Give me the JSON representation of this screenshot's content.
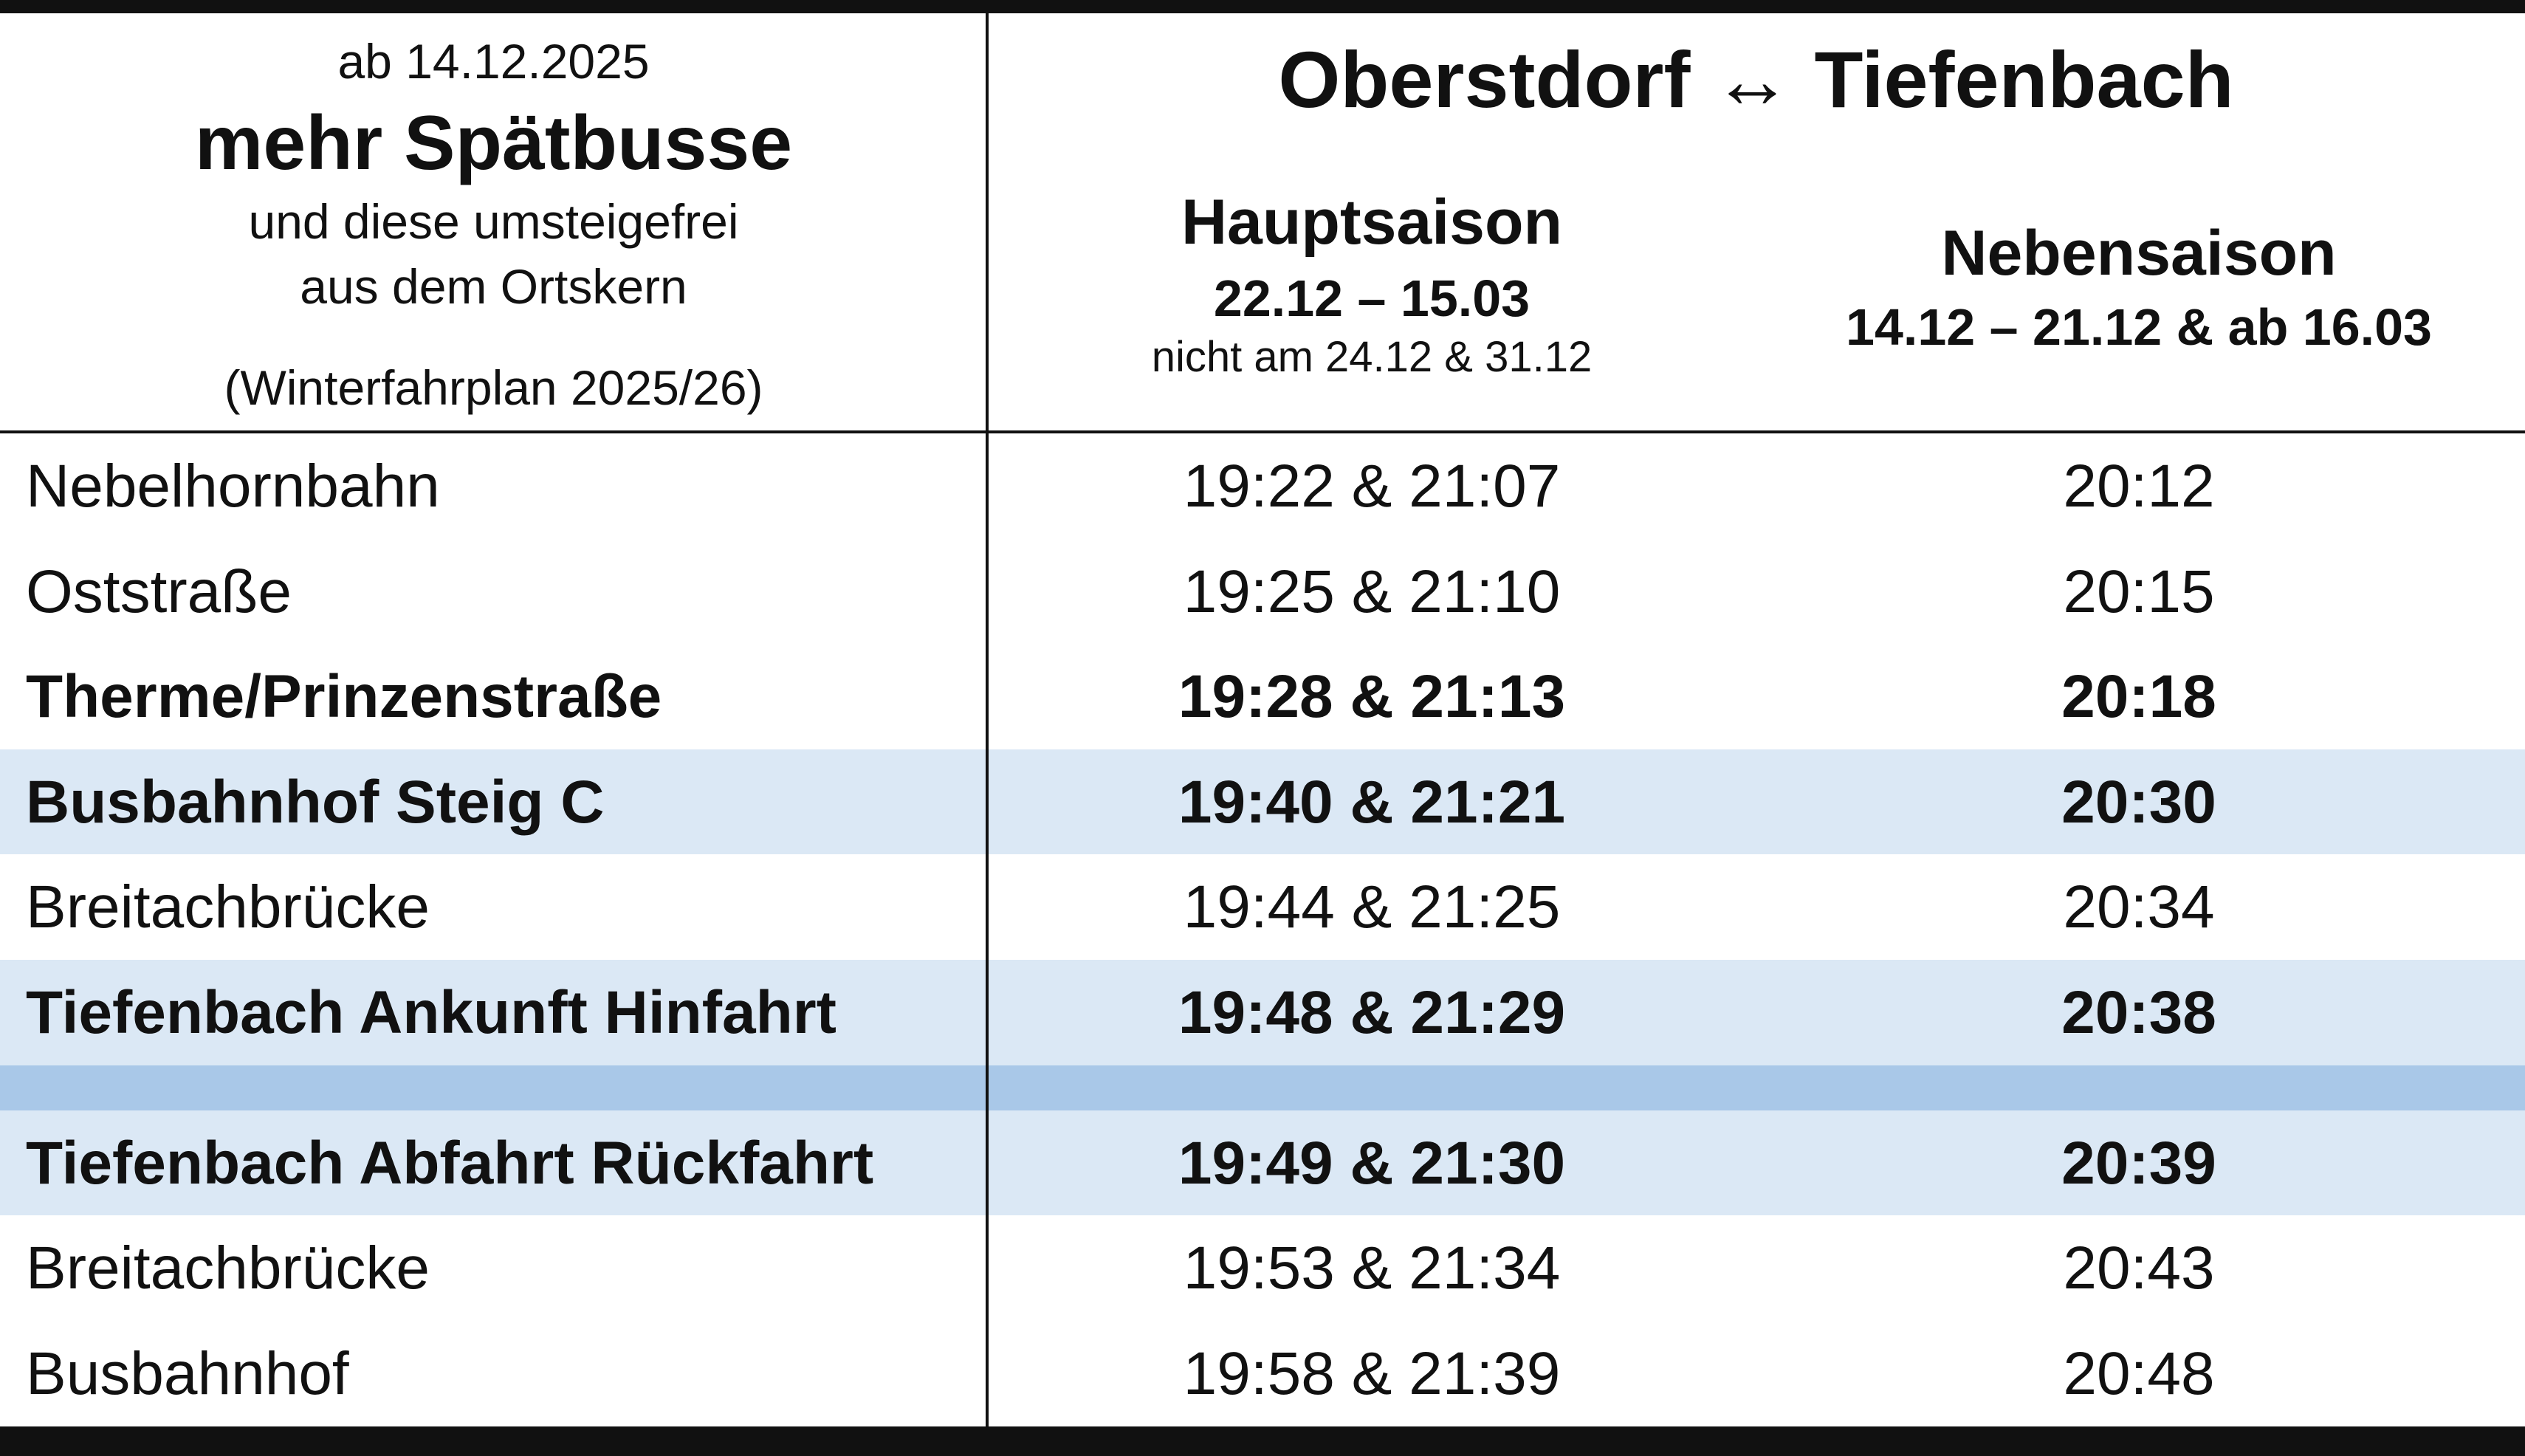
{
  "header": {
    "date": "ab 14.12.2025",
    "title": "mehr Spätbusse",
    "subtitle_lines": [
      "und diese umsteigefrei",
      "aus dem Ortskern"
    ],
    "note": "(Winterfahrplan 2025/26)",
    "route": "Oberstdorf ↔ Tiefenbach"
  },
  "columns": [
    {
      "name": "Hauptsaison",
      "dates": "22.12 – 15.03",
      "note": "nicht am 24.12 & 31.12"
    },
    {
      "name": "Nebensaison",
      "dates": "14.12 – 21.12 & ab 16.03"
    }
  ],
  "sections": [
    {
      "rows": [
        {
          "stop": "Nebelhornbahn",
          "times": [
            "19:22 & 21:07",
            "20:12"
          ],
          "bold": false,
          "highlight": false
        },
        {
          "stop": "Oststraße",
          "times": [
            "19:25 & 21:10",
            "20:15"
          ],
          "bold": false,
          "highlight": false
        },
        {
          "stop": "Therme/Prinzenstraße",
          "times": [
            "19:28 & 21:13",
            "20:18"
          ],
          "bold": true,
          "highlight": false
        },
        {
          "stop": "Busbahnhof Steig C",
          "times": [
            "19:40 & 21:21",
            "20:30"
          ],
          "bold": true,
          "highlight": true
        },
        {
          "stop": "Breitachbrücke",
          "times": [
            "19:44 & 21:25",
            "20:34"
          ],
          "bold": false,
          "highlight": false
        },
        {
          "stop": "Tiefenbach Ankunft Hinfahrt",
          "times": [
            "19:48 & 21:29",
            "20:38"
          ],
          "bold": true,
          "highlight": true
        }
      ]
    },
    {
      "rows": [
        {
          "stop": "Tiefenbach Abfahrt Rückfahrt",
          "times": [
            "19:49 & 21:30",
            "20:39"
          ],
          "bold": true,
          "highlight": true
        },
        {
          "stop": "Breitachbrücke",
          "times": [
            "19:53 & 21:34",
            "20:43"
          ],
          "bold": false,
          "highlight": false
        },
        {
          "stop": "Busbahnhof",
          "times": [
            "19:58 & 21:39",
            "20:48"
          ],
          "bold": false,
          "highlight": false
        }
      ]
    }
  ]
}
